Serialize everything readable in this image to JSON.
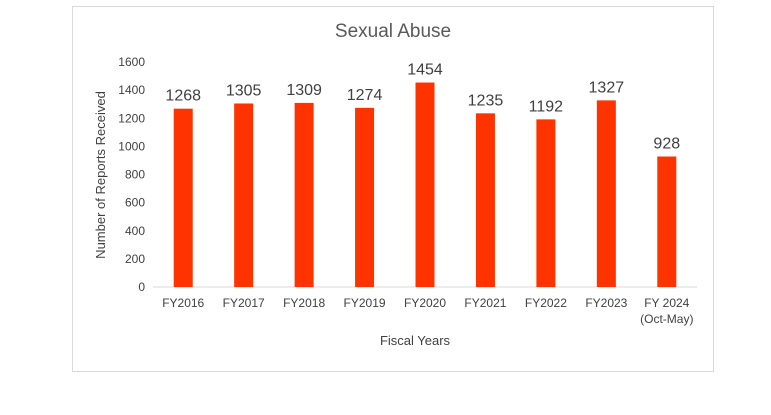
{
  "chart_data": {
    "type": "bar",
    "title": "Sexual Abuse",
    "xlabel": "Fiscal Years",
    "ylabel": "Number of Reports Received",
    "categories": [
      [
        "FY2016"
      ],
      [
        "FY2017"
      ],
      [
        "FY2018"
      ],
      [
        "FY2019"
      ],
      [
        "FY2020"
      ],
      [
        "FY2021"
      ],
      [
        "FY2022"
      ],
      [
        "FY2023"
      ],
      [
        "FY 2024",
        "(Oct-May)"
      ]
    ],
    "values": [
      1268,
      1305,
      1309,
      1274,
      1454,
      1235,
      1192,
      1327,
      928
    ],
    "ylim": [
      0,
      1600
    ],
    "yticks": [
      0,
      200,
      400,
      600,
      800,
      1000,
      1200,
      1400,
      1600
    ],
    "bar_color": "#ff3300",
    "grid": false,
    "legend": "none"
  }
}
